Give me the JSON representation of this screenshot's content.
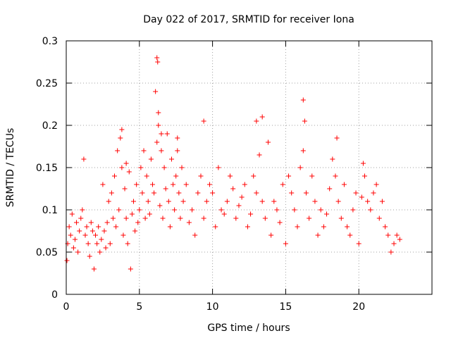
{
  "chart_data": {
    "type": "scatter",
    "title": "Day 022 of 2017, SRMTID for receiver Iona",
    "xlabel": "GPS time / hours",
    "ylabel": "SRMTID / TECUs",
    "xlim": [
      0,
      25
    ],
    "ylim": [
      0,
      0.3
    ],
    "xticks": [
      0,
      5,
      10,
      15,
      20
    ],
    "xtick_labels": [
      "0",
      "5",
      "10",
      "15",
      "20"
    ],
    "yticks": [
      0,
      0.05,
      0.1,
      0.15,
      0.2,
      0.25,
      0.3
    ],
    "ytick_labels": [
      "0",
      "0.05",
      "0.1",
      "0.15",
      "0.2",
      "0.25",
      "0.3"
    ],
    "grid": true,
    "marker": "plus",
    "color": "#ff0000",
    "series": [
      {
        "name": "SRMTID",
        "x": [
          0.05,
          0.1,
          0.2,
          0.3,
          0.4,
          0.5,
          0.6,
          0.7,
          0.8,
          0.9,
          1.0,
          1.1,
          1.2,
          1.3,
          1.4,
          1.5,
          1.6,
          1.7,
          1.8,
          1.9,
          2.0,
          2.1,
          2.2,
          2.3,
          2.4,
          2.5,
          2.6,
          2.7,
          2.8,
          2.9,
          3.0,
          3.1,
          3.2,
          3.3,
          3.4,
          3.5,
          3.6,
          3.7,
          3.8,
          3.9,
          4.0,
          4.1,
          4.2,
          4.3,
          4.4,
          4.5,
          4.6,
          4.7,
          4.8,
          4.9,
          5.0,
          5.1,
          5.2,
          5.3,
          5.4,
          5.5,
          5.6,
          5.7,
          5.8,
          5.9,
          6.0,
          6.1,
          6.2,
          6.3,
          6.4,
          6.5,
          6.6,
          6.7,
          6.8,
          6.9,
          7.0,
          7.1,
          7.2,
          7.3,
          7.4,
          7.5,
          7.6,
          7.7,
          7.8,
          7.9,
          8.0,
          8.2,
          8.4,
          8.6,
          8.8,
          9.0,
          9.2,
          9.4,
          9.6,
          9.8,
          10.0,
          10.2,
          10.4,
          10.6,
          10.8,
          11.0,
          11.2,
          11.4,
          11.6,
          11.8,
          12.0,
          12.2,
          12.4,
          12.6,
          12.8,
          13.0,
          13.2,
          13.4,
          13.6,
          13.8,
          14.0,
          14.2,
          14.4,
          14.6,
          14.8,
          15.0,
          15.2,
          15.4,
          15.6,
          15.8,
          16.0,
          16.2,
          16.4,
          16.6,
          16.8,
          17.0,
          17.2,
          17.4,
          17.6,
          17.8,
          18.0,
          18.2,
          18.4,
          18.6,
          18.8,
          19.0,
          19.2,
          19.4,
          19.6,
          19.8,
          20.0,
          20.2,
          20.4,
          20.6,
          20.8,
          21.0,
          21.2,
          21.4,
          21.6,
          21.8,
          22.0,
          22.2,
          22.4,
          22.6,
          22.8,
          6.2,
          6.25,
          6.3,
          16.2,
          16.3,
          18.5,
          13.0,
          13.4,
          9.4,
          20.3,
          6.5,
          7.6,
          3.8,
          4.1
        ],
        "y": [
          0.04,
          0.06,
          0.08,
          0.07,
          0.095,
          0.055,
          0.065,
          0.085,
          0.05,
          0.075,
          0.09,
          0.1,
          0.16,
          0.07,
          0.08,
          0.06,
          0.045,
          0.085,
          0.075,
          0.03,
          0.07,
          0.06,
          0.08,
          0.05,
          0.065,
          0.13,
          0.075,
          0.055,
          0.085,
          0.11,
          0.06,
          0.12,
          0.09,
          0.14,
          0.08,
          0.17,
          0.1,
          0.185,
          0.15,
          0.07,
          0.125,
          0.09,
          0.06,
          0.145,
          0.03,
          0.095,
          0.11,
          0.075,
          0.13,
          0.085,
          0.1,
          0.15,
          0.12,
          0.17,
          0.09,
          0.14,
          0.11,
          0.095,
          0.16,
          0.13,
          0.12,
          0.24,
          0.18,
          0.2,
          0.105,
          0.17,
          0.09,
          0.15,
          0.125,
          0.19,
          0.11,
          0.08,
          0.16,
          0.13,
          0.1,
          0.14,
          0.17,
          0.12,
          0.09,
          0.15,
          0.11,
          0.13,
          0.085,
          0.1,
          0.07,
          0.12,
          0.14,
          0.09,
          0.11,
          0.13,
          0.12,
          0.08,
          0.15,
          0.1,
          0.095,
          0.11,
          0.14,
          0.125,
          0.09,
          0.105,
          0.115,
          0.13,
          0.08,
          0.095,
          0.14,
          0.12,
          0.165,
          0.11,
          0.09,
          0.18,
          0.07,
          0.11,
          0.1,
          0.085,
          0.13,
          0.06,
          0.14,
          0.12,
          0.1,
          0.08,
          0.15,
          0.17,
          0.12,
          0.09,
          0.14,
          0.11,
          0.07,
          0.1,
          0.08,
          0.095,
          0.125,
          0.16,
          0.14,
          0.11,
          0.09,
          0.13,
          0.08,
          0.07,
          0.1,
          0.12,
          0.06,
          0.115,
          0.14,
          0.11,
          0.1,
          0.12,
          0.13,
          0.09,
          0.11,
          0.08,
          0.07,
          0.05,
          0.06,
          0.07,
          0.065,
          0.28,
          0.275,
          0.215,
          0.23,
          0.205,
          0.185,
          0.205,
          0.21,
          0.205,
          0.155,
          0.19,
          0.185,
          0.195,
          0.155
        ]
      }
    ]
  }
}
